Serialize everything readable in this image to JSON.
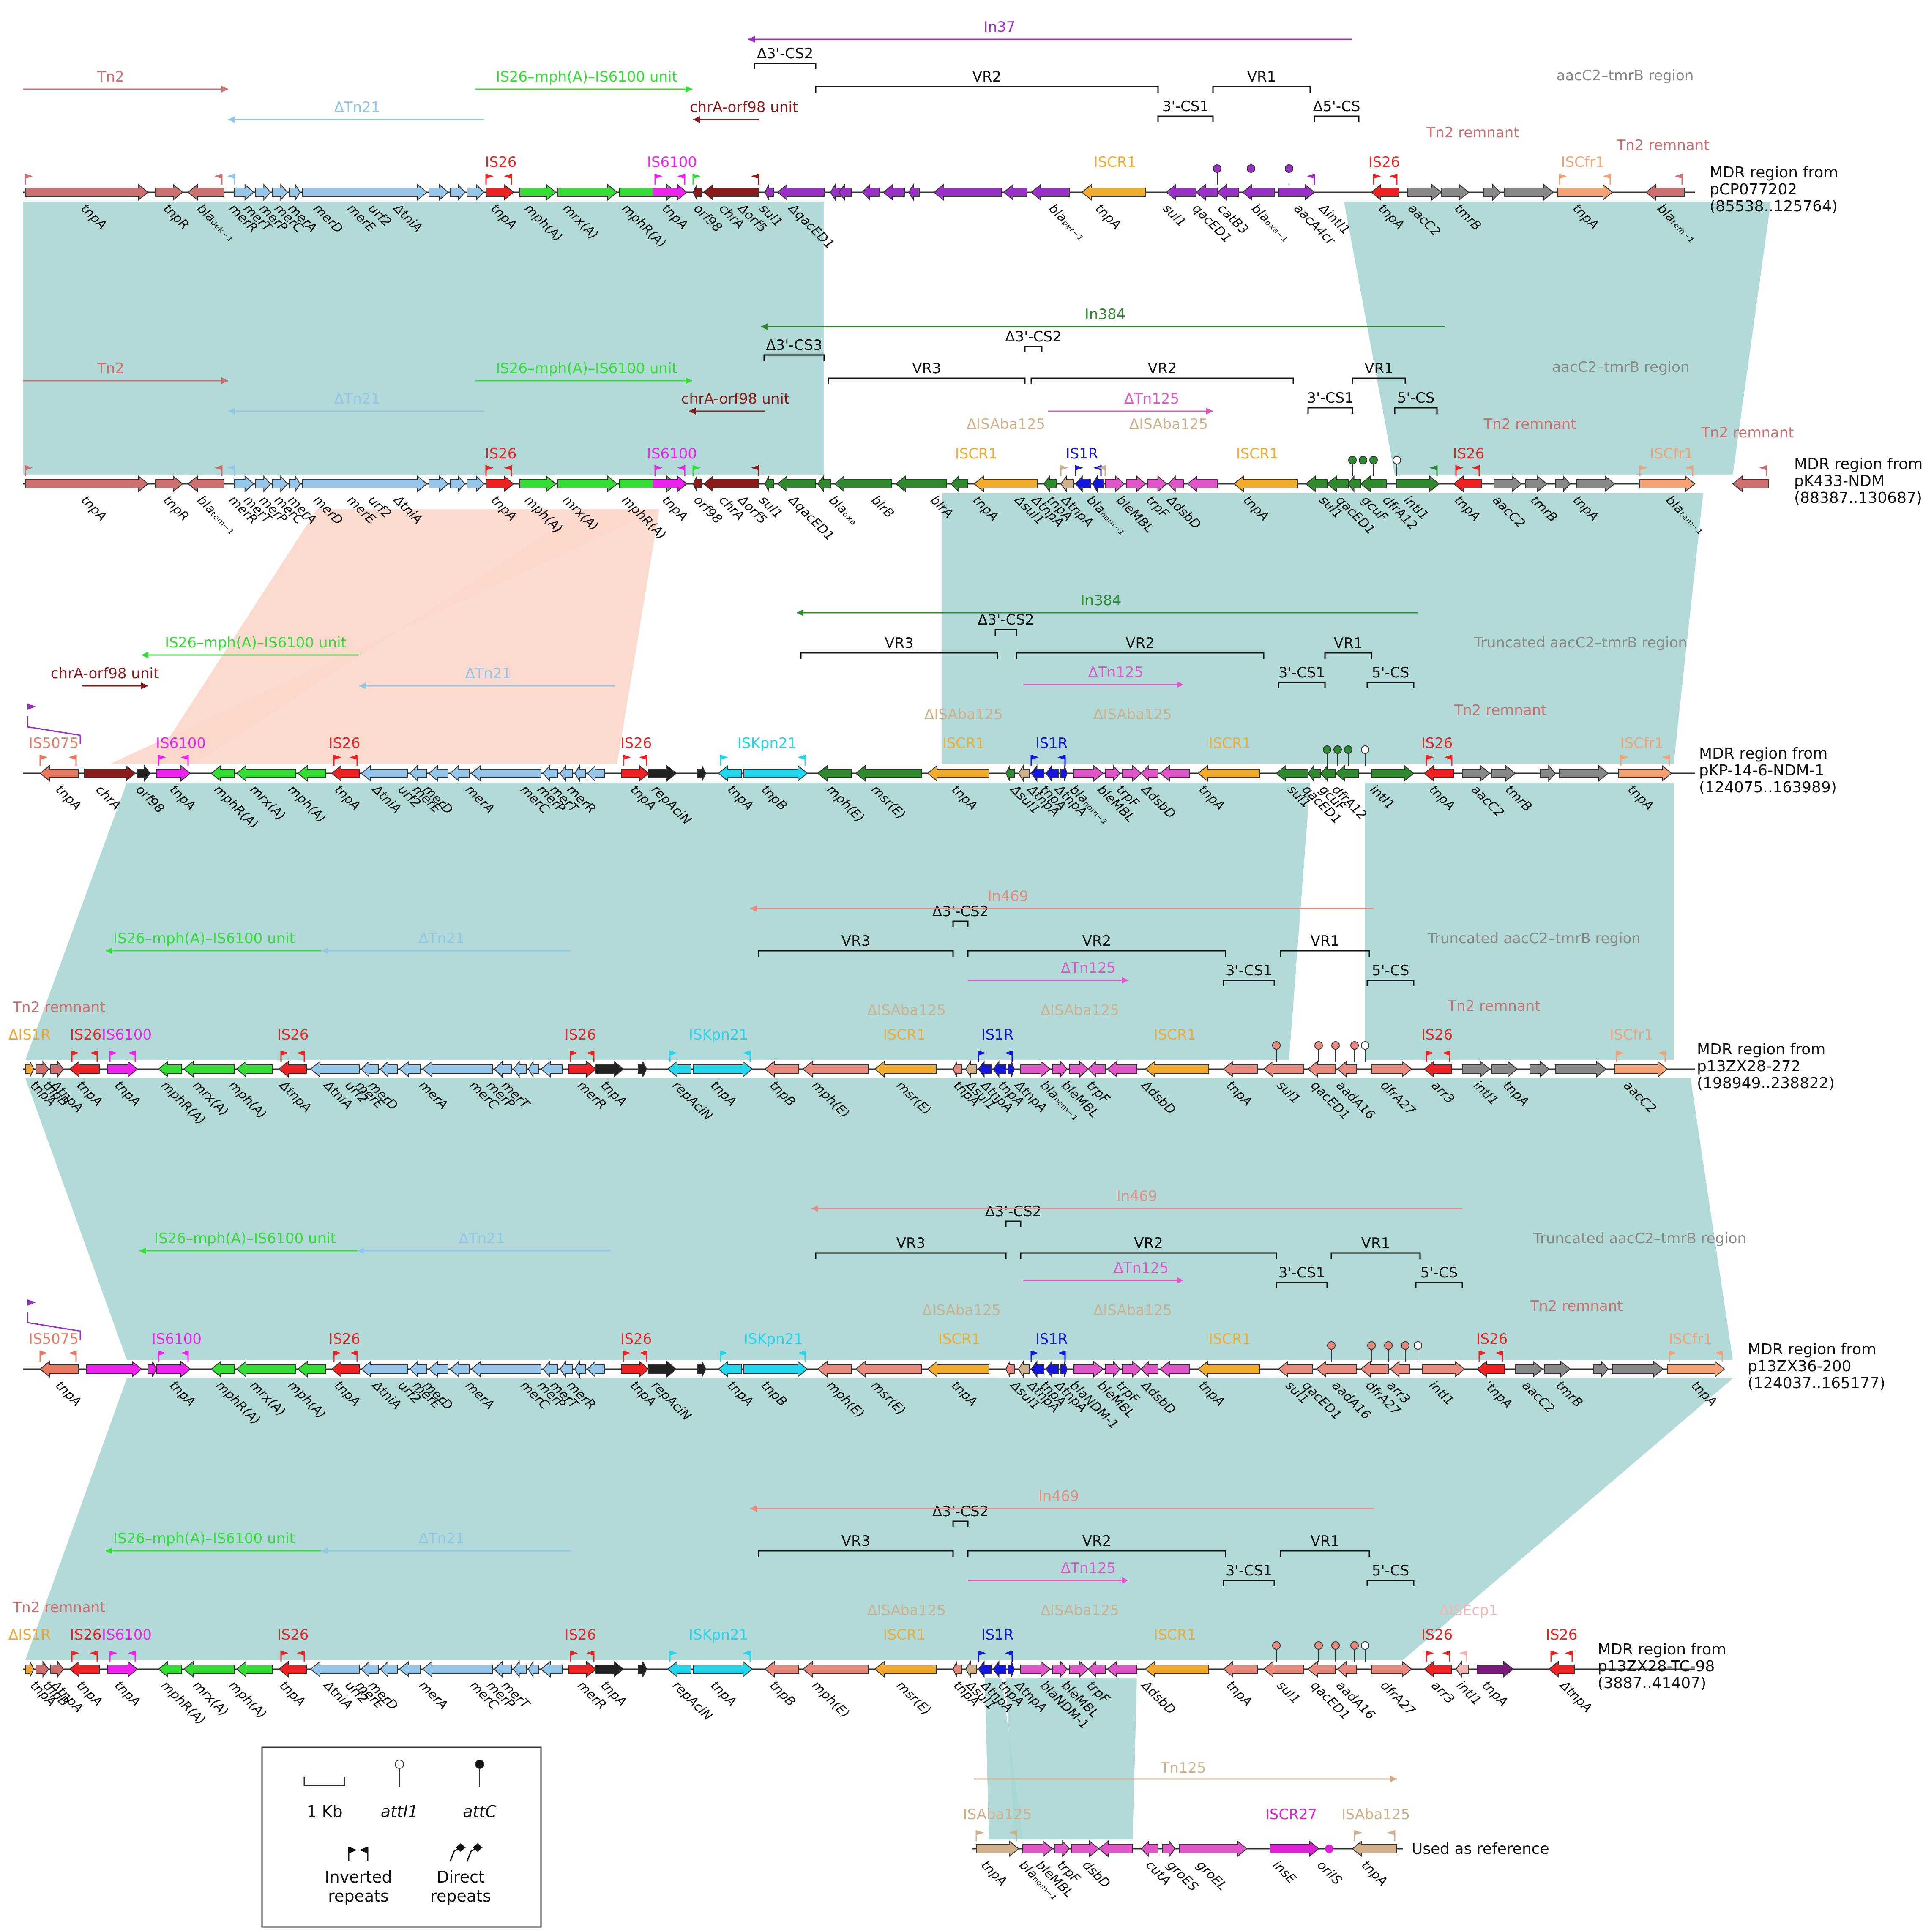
{
  "colors": {
    "tn2": "#cd6f6f",
    "tn21": "#93c6e8",
    "mph": "#33dd33",
    "is26": "#ee2222",
    "is6100": "#ee22ee",
    "chr": "#8b1a1a",
    "in37": "#9b30c8",
    "iscr1": "#f3ab2e",
    "grey": "#888888",
    "iscfr1": "#f4a275",
    "in384": "#2f8a2f",
    "tn125": "#e055c8",
    "is1r": "#1515e0",
    "isaba125": "#cfb08a",
    "iskpn21": "#22d6ee",
    "in469": "#e98a7e",
    "black": "#222222",
    "is5075": "#e87860",
    "is1r_orange": "#f3a52b",
    "blactx": "#7d1b7d",
    "isecp1": "#f5b5b5",
    "iscr27": "#e020d8",
    "shade_teal": "#a9d6d4",
    "shade_salmon": "#fbd6cb"
  },
  "rows": [
    {
      "title": [
        "MDR region from",
        "pCP077202",
        "(85538..125764)"
      ],
      "elements": [
        {
          "text": "Tn2",
          "color": "tn2"
        },
        {
          "text": "IS26–mph(A)–IS6100 unit",
          "color": "mph"
        },
        {
          "text": "ΔTn21",
          "color": "tn21"
        },
        {
          "text": "chrA-orf98 unit",
          "color": "chr"
        },
        {
          "text": "In37",
          "color": "in37"
        },
        {
          "text": "aacC2–tmrB region",
          "color": "grey"
        },
        {
          "text": "Tn2 remnant",
          "color": "tn2"
        },
        {
          "text": "Tn2 remnant",
          "color": "tn2"
        },
        {
          "text": "IS26",
          "color": "is26"
        },
        {
          "text": "IS6100",
          "color": "is6100"
        },
        {
          "text": "ISCR1",
          "color": "iscr1"
        },
        {
          "text": "IS26",
          "color": "is26"
        },
        {
          "text": "ISCfr1",
          "color": "iscfr1"
        }
      ],
      "brackets": [
        "Δ3'-CS2",
        "VR2",
        "VR1",
        "3'-CS1",
        "Δ5'-CS"
      ],
      "genes": [
        "tnpA",
        "tnpR",
        "bla₀ₑₖ₋₁",
        "merR",
        "merT",
        "merP",
        "merC",
        "merA",
        "merD",
        "merE",
        "urf2",
        "ΔtniA",
        "tnpA",
        "mph(A)",
        "mrx(A)",
        "mphR(A)",
        "tnpA",
        "orf98",
        "chrA",
        "Δorf5",
        "sul1",
        "ΔqacED1",
        "blaₚₑᵣ₋₁",
        "tnpA",
        "sul1",
        "qacED1",
        "catB3",
        "blaₒₓₐ₋₁",
        "aacA4cr",
        "ΔintI1",
        "tnpA",
        "aacC2",
        "tmrB",
        "tnpA",
        "blaₜₑₘ₋₁"
      ]
    },
    {
      "title": [
        "MDR region from",
        "pK433-NDM",
        "(88387..130687)"
      ],
      "elements": [
        {
          "text": "Tn2",
          "color": "tn2"
        },
        {
          "text": "IS26–mph(A)–IS6100 unit",
          "color": "mph"
        },
        {
          "text": "ΔTn21",
          "color": "tn21"
        },
        {
          "text": "chrA-orf98 unit",
          "color": "chr"
        },
        {
          "text": "In384",
          "color": "in384"
        },
        {
          "text": "ΔTn125",
          "color": "tn125"
        },
        {
          "text": "aacC2–tmrB region",
          "color": "grey"
        },
        {
          "text": "Tn2 remnant",
          "color": "tn2"
        },
        {
          "text": "Tn2 remnant",
          "color": "tn2"
        },
        {
          "text": "ΔISAba125",
          "color": "isaba125"
        },
        {
          "text": "ΔISAba125",
          "color": "isaba125"
        },
        {
          "text": "IS26",
          "color": "is26"
        },
        {
          "text": "IS6100",
          "color": "is6100"
        },
        {
          "text": "ISCR1",
          "color": "iscr1"
        },
        {
          "text": "IS1R",
          "color": "is1r"
        },
        {
          "text": "ISCR1",
          "color": "iscr1"
        },
        {
          "text": "IS26",
          "color": "is26"
        },
        {
          "text": "ISCfr1",
          "color": "iscfr1"
        }
      ],
      "brackets": [
        "Δ3'-CS3",
        "Δ3'-CS2",
        "VR3",
        "VR2",
        "VR1",
        "3'-CS1",
        "5'-CS"
      ],
      "genes": [
        "tnpA",
        "tnpR",
        "blaₜₑₘ₋₁",
        "merR",
        "merT",
        "merP",
        "merC",
        "merA",
        "merD",
        "merE",
        "urf2",
        "ΔtniA",
        "tnpA",
        "mph(A)",
        "mrx(A)",
        "mphR(A)",
        "tnpA",
        "orf98",
        "chrA",
        "Δorf5",
        "sul1",
        "ΔqacED1",
        "blaₒₓₐ",
        "blrB",
        "blrA",
        "tnpA",
        "Δsul1",
        "ΔtnpA",
        "tnpA",
        "ΔtnpA",
        "blaₙₒₘ₋₁",
        "bleMBL",
        "trpF",
        "ΔdsbD",
        "tnpA",
        "sul1",
        "qacED1",
        "gcuF",
        "dfrA12",
        "intI1",
        "tnpA",
        "aacC2",
        "tmrB",
        "tnpA",
        "blaₜₑₘ₋₁"
      ]
    },
    {
      "title": [
        "MDR region from",
        "pKP-14-6-NDM-1",
        "(124075..163989)"
      ],
      "elements": [
        {
          "text": "IS26–mph(A)–IS6100 unit",
          "color": "mph"
        },
        {
          "text": "chrA-orf98 unit",
          "color": "chr"
        },
        {
          "text": "ΔTn21",
          "color": "tn21"
        },
        {
          "text": "In384",
          "color": "in384"
        },
        {
          "text": "ΔTn125",
          "color": "tn125"
        },
        {
          "text": "Truncated aacC2–tmrB region",
          "color": "grey"
        },
        {
          "text": "Tn2 remnant",
          "color": "tn2"
        },
        {
          "text": "IS5075",
          "color": "is5075"
        },
        {
          "text": "IS6100",
          "color": "is6100"
        },
        {
          "text": "IS26",
          "color": "is26"
        },
        {
          "text": "IS26",
          "color": "is26"
        },
        {
          "text": "ISKpn21",
          "color": "iskpn21"
        },
        {
          "text": "ΔISAba125",
          "color": "isaba125"
        },
        {
          "text": "ISCR1",
          "color": "iscr1"
        },
        {
          "text": "IS1R",
          "color": "is1r"
        },
        {
          "text": "ΔISAba125",
          "color": "isaba125"
        },
        {
          "text": "ISCR1",
          "color": "iscr1"
        },
        {
          "text": "IS26",
          "color": "is26"
        },
        {
          "text": "ISCfr1",
          "color": "iscfr1"
        }
      ],
      "brackets": [
        "Δ3'-CS2",
        "VR3",
        "VR2",
        "VR1",
        "3'-CS1",
        "5'-CS"
      ],
      "genes": [
        "tnpA",
        "chrA",
        "orf98",
        "tnpA",
        "mphR(A)",
        "mrx(A)",
        "mph(A)",
        "tnpA",
        "ΔtniA",
        "urf2",
        "merE",
        "merD",
        "merA",
        "merC",
        "merP",
        "merT",
        "merR",
        "tnpA",
        "repAciN",
        "tnpA",
        "tnpB",
        "mph(E)",
        "msr(E)",
        "tnpA",
        "Δsul1",
        "ΔtnpA",
        "tnpA",
        "ΔtnpA",
        "blaₙₒₘ₋₁",
        "bleMBL",
        "trpF",
        "ΔdsbD",
        "tnpA",
        "sul1",
        "qacED1",
        "gcuF",
        "dfrA12",
        "intI1",
        "tnpA",
        "aacC2",
        "tmrB",
        "tnpA"
      ]
    },
    {
      "title": [
        "MDR region from",
        "p13ZX28-272",
        "(198949..238822)"
      ],
      "elements": [
        {
          "text": "IS26–mph(A)–IS6100 unit",
          "color": "mph"
        },
        {
          "text": "ΔTn21",
          "color": "tn21"
        },
        {
          "text": "In469",
          "color": "in469"
        },
        {
          "text": "ΔTn125",
          "color": "tn125"
        },
        {
          "text": "Truncated aacC2–tmrB region",
          "color": "grey"
        },
        {
          "text": "Tn2 remnant",
          "color": "tn2"
        },
        {
          "text": "Tn2 remnant",
          "color": "tn2"
        },
        {
          "text": "ΔIS1R",
          "color": "is1r_orange"
        },
        {
          "text": "IS26",
          "color": "is26"
        },
        {
          "text": "IS6100",
          "color": "is6100"
        },
        {
          "text": "IS26",
          "color": "is26"
        },
        {
          "text": "IS26",
          "color": "is26"
        },
        {
          "text": "ISKpn21",
          "color": "iskpn21"
        },
        {
          "text": "ΔISAba125",
          "color": "isaba125"
        },
        {
          "text": "ISCR1",
          "color": "iscr1"
        },
        {
          "text": "IS1R",
          "color": "is1r"
        },
        {
          "text": "ΔISAba125",
          "color": "isaba125"
        },
        {
          "text": "ISCR1",
          "color": "iscr1"
        },
        {
          "text": "IS26",
          "color": "is26"
        },
        {
          "text": "ISCfr1",
          "color": "iscfr1"
        }
      ],
      "brackets": [
        "Δ3'-CS2",
        "VR3",
        "VR2",
        "VR1",
        "3'-CS1",
        "5'-CS"
      ],
      "genes": [
        "tnpA",
        "tnpB",
        "ΔtnpA",
        "tnpA",
        "tnpA",
        "mphR(A)",
        "mrx(A)",
        "mph(A)",
        "ΔtnpA",
        "ΔtniA",
        "urf2",
        "merE",
        "merD",
        "merA",
        "merC",
        "merP",
        "merT",
        "merR",
        "tnpA",
        "repAciN",
        "tnpA",
        "tnpB",
        "mph(E)",
        "msr(E)",
        "tnpA",
        "Δsul1",
        "ΔtnpA",
        "tnpA",
        "ΔtnpA",
        "blaₙₒₘ₋₁",
        "bleMBL",
        "trpF",
        "ΔdsbD",
        "tnpA",
        "sul1",
        "qacED1",
        "aadA16",
        "dfrA27",
        "arr3",
        "intI1",
        "tnpA",
        "aacC2",
        "tmrB",
        "tnpA"
      ]
    },
    {
      "title": [
        "MDR region from",
        "p13ZX36-200",
        "(124037..165177)"
      ],
      "elements": [
        {
          "text": "IS26–mph(A)–IS6100 unit",
          "color": "mph"
        },
        {
          "text": "ΔTn21",
          "color": "tn21"
        },
        {
          "text": "In469",
          "color": "in469"
        },
        {
          "text": "ΔTn125",
          "color": "tn125"
        },
        {
          "text": "Truncated aacC2–tmrB region",
          "color": "grey"
        },
        {
          "text": "Tn2 remnant",
          "color": "tn2"
        },
        {
          "text": "IS5075",
          "color": "is5075"
        },
        {
          "text": "IS6100",
          "color": "is6100"
        },
        {
          "text": "IS26",
          "color": "is26"
        },
        {
          "text": "IS26",
          "color": "is26"
        },
        {
          "text": "ISKpn21",
          "color": "iskpn21"
        },
        {
          "text": "ΔISAba125",
          "color": "isaba125"
        },
        {
          "text": "ISCR1",
          "color": "iscr1"
        },
        {
          "text": "IS1R",
          "color": "is1r"
        },
        {
          "text": "ΔISAba125",
          "color": "isaba125"
        },
        {
          "text": "ISCR1",
          "color": "iscr1"
        },
        {
          "text": "IS26",
          "color": "is26"
        },
        {
          "text": "ISCfr1",
          "color": "iscfr1"
        }
      ],
      "brackets": [
        "Δ3'-CS2",
        "VR3",
        "VR2",
        "VR1",
        "3'-CS1",
        "5'-CS"
      ],
      "genes": [
        "tnpA",
        "tnpA",
        "mphR(A)",
        "mrx(A)",
        "mph(A)",
        "tnpA",
        "ΔtniA",
        "urf2",
        "merE",
        "merD",
        "merA",
        "merC",
        "merP",
        "merT",
        "merR",
        "tnpA",
        "repAciN",
        "tnpA",
        "tnpB",
        "mph(E)",
        "msr(E)",
        "tnpA",
        "Δsul1",
        "ΔtnpA",
        "tnpA",
        "ΔtnpA",
        "blaNDM-1",
        "bleMBL",
        "trpF",
        "ΔdsbD",
        "tnpA",
        "sul1",
        "qacED1",
        "aadA16",
        "dfrA27",
        "arr3",
        "intI1",
        "'tnpA",
        "aacC2",
        "tmrB",
        "tnpA"
      ]
    },
    {
      "title": [
        "MDR region from",
        "p13ZX28-TC-98",
        "(3887..41407)"
      ],
      "elements": [
        {
          "text": "IS26–mph(A)–IS6100 unit",
          "color": "mph"
        },
        {
          "text": "ΔTn21",
          "color": "tn21"
        },
        {
          "text": "In469",
          "color": "in469"
        },
        {
          "text": "ΔTn125",
          "color": "tn125"
        },
        {
          "text": "Tn2 remnant",
          "color": "tn2"
        },
        {
          "text": "ΔIS1R",
          "color": "is1r_orange"
        },
        {
          "text": "IS26",
          "color": "is26"
        },
        {
          "text": "IS6100",
          "color": "is6100"
        },
        {
          "text": "IS26",
          "color": "is26"
        },
        {
          "text": "IS26",
          "color": "is26"
        },
        {
          "text": "ISKpn21",
          "color": "iskpn21"
        },
        {
          "text": "ΔISAba125",
          "color": "isaba125"
        },
        {
          "text": "ISCR1",
          "color": "iscr1"
        },
        {
          "text": "IS1R",
          "color": "is1r"
        },
        {
          "text": "ΔISAba125",
          "color": "isaba125"
        },
        {
          "text": "ISCR1",
          "color": "iscr1"
        },
        {
          "text": "IS26",
          "color": "is26"
        },
        {
          "text": "ΔISEcp1",
          "color": "isecp1"
        },
        {
          "text": "IS26",
          "color": "is26"
        }
      ],
      "brackets": [
        "Δ3'-CS2",
        "VR3",
        "VR2",
        "VR1",
        "3'-CS1",
        "5'-CS"
      ],
      "genes": [
        "tnpA",
        "tnpB",
        "ΔtnpA",
        "tnpA",
        "tnpA",
        "mphR(A)",
        "mrx(A)",
        "mph(A)",
        "tnpA",
        "ΔtniA",
        "urf2",
        "merE",
        "merD",
        "merA",
        "merC",
        "merP",
        "merT",
        "merR",
        "tnpA",
        "repAciN",
        "tnpA",
        "tnpB",
        "mph(E)",
        "msr(E)",
        "tnpA",
        "Δsul1",
        "ΔtnpA",
        "tnpA",
        "ΔtnpA",
        "blaNDM-1",
        "bleMBL",
        "trpF",
        "ΔdsbD",
        "tnpA",
        "sul1",
        "qacED1",
        "aadA16",
        "dfrA27",
        "arr3",
        "intI1",
        "tnpA",
        "ΔtnpA",
        "blaᴄₜₓ₋ₘ₋₁₄",
        "tnpA"
      ]
    }
  ],
  "reference": {
    "title": "Used as reference",
    "elements": [
      {
        "text": "Tn125",
        "color": "isaba125"
      },
      {
        "text": "ISAba125",
        "color": "isaba125"
      },
      {
        "text": "ISCR27",
        "color": "iscr27"
      },
      {
        "text": "ISAba125",
        "color": "isaba125"
      }
    ],
    "genes": [
      "tnpA",
      "blaₙₒₘ₋₁",
      "bleMBL",
      "trpF",
      "dsbD",
      "cutA",
      "groES",
      "groEL",
      "insE",
      "oriIS",
      "tnpA"
    ]
  },
  "legend": {
    "scale": "1 Kb",
    "att1": "attI1",
    "attc": "attC",
    "inverted": [
      "Inverted",
      "repeats"
    ],
    "direct": [
      "Direct",
      "repeats"
    ]
  }
}
